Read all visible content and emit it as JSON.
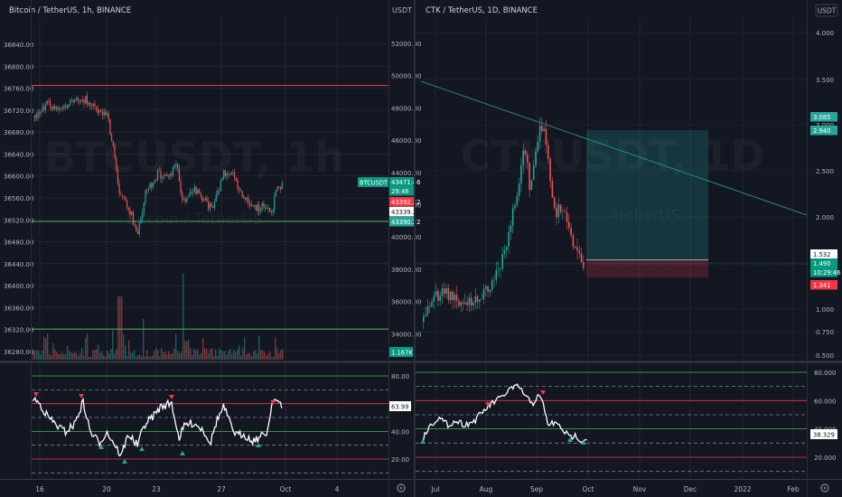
{
  "colors": {
    "background": "#131722",
    "grid": "#2a2e39",
    "divider": "#363a45",
    "text": "#b2b5be",
    "up": "#26a69a",
    "down": "#ef5350",
    "red_line": "#f23645",
    "green_line": "#4caf50",
    "osc_line": "#ffffff",
    "trend_line": "#1e8a7e",
    "tag_teal": "#089981",
    "tag_red": "#f23645",
    "tag_green": "#26a69a",
    "tag_white": "#ffffff",
    "long_zone": "rgba(38,166,154,0.22)",
    "stop_zone": "rgba(242,54,69,0.22)"
  },
  "left": {
    "title": "Bitcoin / TetherUS, 1h, BINANCE",
    "watermark": "BTCUSDT, 1h",
    "watermark_sub": "Bitcoin / TetherUS",
    "right_scale_unit": "USDT",
    "left_scale_labels": [
      "36840.00",
      "36800.00",
      "36760.00",
      "36720.00",
      "36680.00",
      "36640.00",
      "36600.00",
      "36560.00",
      "36520.00",
      "36480.00",
      "36440.00",
      "36400.00",
      "36360.00",
      "36320.00",
      "36280.00"
    ],
    "right_scale_labels": [
      "52000.00",
      "50000.00",
      "48000.00",
      "46000.00",
      "44000.00",
      "42000.00",
      "40000.00",
      "38000.00",
      "36000.00",
      "34000.00"
    ],
    "price_tag_symbol": "BTCUSDT",
    "price_tags": [
      {
        "text": "43471.46",
        "color": "#089981"
      },
      {
        "text": "29:46",
        "color": "#089981"
      },
      {
        "text": "43392.22",
        "color": "#f23645"
      },
      {
        "text": "43339.22",
        "color": "#ffffff"
      },
      {
        "text": "43390.22",
        "color": "#26a69a"
      }
    ],
    "volume_tag": "1.167K",
    "x_labels": [
      "16",
      "20",
      "23",
      "27",
      "Oct",
      "4"
    ],
    "hlines": [
      {
        "price": 36765,
        "color": "#f23645"
      },
      {
        "price": 36517,
        "color": "#4caf50"
      }
    ],
    "volume_threshold_price": 36321,
    "osc_value_tag": "63.99",
    "osc_labels": [
      "80.00",
      "60.00",
      "40.00",
      "20.00"
    ]
  },
  "right": {
    "title": "CTK / TetherUS, 1D, BINANCE",
    "watermark": "CTKUSDT, 1D",
    "watermark_sub": "TetherUS",
    "currency": "USDT",
    "scale_labels": [
      "4.000",
      "3.500",
      "3.000",
      "2.500",
      "2.000",
      "1.500",
      "1.000",
      "0.750",
      "0.500"
    ],
    "tags": [
      {
        "text": "3.085",
        "color": "#26a69a"
      },
      {
        "text": "2.940",
        "color": "#26a69a"
      },
      {
        "text": "1.532",
        "color": "#ffffff"
      },
      {
        "text": "1.490",
        "color": "#089981"
      },
      {
        "text": "10:29:46",
        "color": "#089981"
      },
      {
        "text": "1.341",
        "color": "#f23645"
      }
    ],
    "x_labels": [
      "Jul",
      "Aug",
      "Sep",
      "Oct",
      "Nov",
      "Dec",
      "2022",
      "Feb"
    ],
    "position": {
      "entry": 1.532,
      "target": 2.94,
      "stop": 1.341
    },
    "trendline": {
      "start_price": 3.48,
      "end_price": 2.02
    },
    "osc_value_tag": "38.329",
    "osc_labels": [
      "80.000",
      "60.000",
      "40.000",
      "20.000"
    ]
  }
}
